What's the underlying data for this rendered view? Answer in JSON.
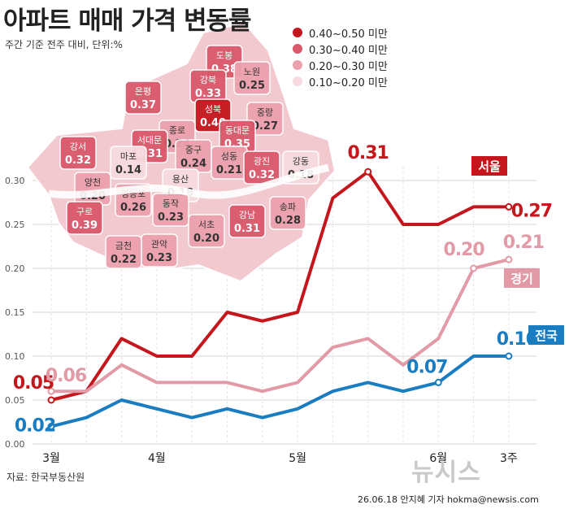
{
  "header": {
    "title": "아파트 매매 가격 변동률",
    "subtitle": "주간 기준 전주 대비, 단위:%"
  },
  "legend": [
    {
      "label": "0.40~0.50 미만",
      "color": "#c4161c"
    },
    {
      "label": "0.30~0.40 미만",
      "color": "#d9596a"
    },
    {
      "label": "0.20~0.30 미만",
      "color": "#eca2ae"
    },
    {
      "label": "0.10~0.20 미만",
      "color": "#f8dbe0"
    }
  ],
  "map": {
    "districts": [
      {
        "name": "도봉",
        "value": "0.38"
      },
      {
        "name": "노원",
        "value": "0.25"
      },
      {
        "name": "강북",
        "value": "0.33"
      },
      {
        "name": "은평",
        "value": "0.37"
      },
      {
        "name": "성북",
        "value": "0.40"
      },
      {
        "name": "중랑",
        "value": "0.27"
      },
      {
        "name": "종로",
        "value": "0.24"
      },
      {
        "name": "동대문",
        "value": "0.35"
      },
      {
        "name": "서대문",
        "value": "0.31"
      },
      {
        "name": "중구",
        "value": "0.24"
      },
      {
        "name": "강서",
        "value": "0.32"
      },
      {
        "name": "마포",
        "value": "0.14"
      },
      {
        "name": "성동",
        "value": "0.21"
      },
      {
        "name": "광진",
        "value": "0.32"
      },
      {
        "name": "강동",
        "value": "0.18"
      },
      {
        "name": "양천",
        "value": "0.20"
      },
      {
        "name": "용산",
        "value": "0.18"
      },
      {
        "name": "영등포",
        "value": "0.26"
      },
      {
        "name": "동작",
        "value": "0.23"
      },
      {
        "name": "구로",
        "value": "0.39"
      },
      {
        "name": "서초",
        "value": "0.20"
      },
      {
        "name": "강남",
        "value": "0.31"
      },
      {
        "name": "송파",
        "value": "0.28"
      },
      {
        "name": "금천",
        "value": "0.22"
      },
      {
        "name": "관악",
        "value": "0.23"
      }
    ]
  },
  "chart_data": {
    "type": "line",
    "title": "아파트 매매 가격 변동률",
    "subtitle": "주간 기준 전주 대비, 단위:%",
    "x_tick_labels": [
      "3월",
      "4월",
      "5월",
      "6월",
      "3주"
    ],
    "ylim": [
      0,
      0.3
    ],
    "y_ticks": [
      "0.00",
      "0.05",
      "0.10",
      "0.15",
      "0.20",
      "0.25",
      "0.30"
    ],
    "grid": true,
    "series": [
      {
        "name": "서울",
        "color": "#c4161c",
        "values": [
          0.05,
          0.06,
          0.12,
          0.1,
          0.1,
          0.15,
          0.14,
          0.15,
          0.28,
          0.31,
          0.25,
          0.25,
          0.27,
          0.27
        ],
        "labels": [
          {
            "index": 0,
            "text": "0.05"
          },
          {
            "index": 9,
            "text": "0.31"
          },
          {
            "index": 13,
            "text": "0.27"
          }
        ]
      },
      {
        "name": "경기",
        "color": "#e29aa6",
        "values": [
          0.06,
          0.06,
          0.09,
          0.07,
          0.07,
          0.07,
          0.06,
          0.07,
          0.11,
          0.12,
          0.09,
          0.12,
          0.2,
          0.21
        ],
        "labels": [
          {
            "index": 0,
            "text": "0.06"
          },
          {
            "index": 12,
            "text": "0.20"
          },
          {
            "index": 13,
            "text": "0.21"
          }
        ]
      },
      {
        "name": "전국",
        "color": "#1a7cc1",
        "values": [
          0.02,
          0.03,
          0.05,
          0.04,
          0.03,
          0.04,
          0.03,
          0.04,
          0.06,
          0.07,
          0.06,
          0.07,
          0.1,
          0.1
        ],
        "labels": [
          {
            "index": 0,
            "text": "0.02"
          },
          {
            "index": 11,
            "text": "0.07"
          },
          {
            "index": 13,
            "text": "0.10"
          }
        ]
      }
    ]
  },
  "footer": {
    "source": "자료: 한국부동산원",
    "credit": "26.06.18 안지혜 기자 hokma@newsis.com",
    "watermark": "뉴시스"
  }
}
